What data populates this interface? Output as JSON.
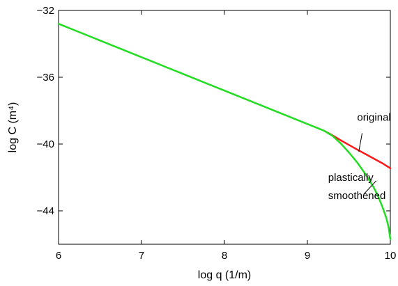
{
  "chart_data": {
    "type": "line",
    "title": "",
    "xlabel": "log q (1/m)",
    "ylabel": "log C (m⁴)",
    "xlim": [
      6,
      10
    ],
    "ylim": [
      -46,
      -32
    ],
    "xticks": [
      6,
      7,
      8,
      9,
      10
    ],
    "yticks": [
      -44,
      -40,
      -36,
      -32
    ],
    "xtick_labels": [
      "6",
      "7",
      "8",
      "9",
      "10"
    ],
    "ytick_labels": [
      "−44",
      "−40",
      "−36",
      "−32"
    ],
    "grid": false,
    "series": [
      {
        "color": "#ff1a1a",
        "x": [
          9.2,
          9.3,
          9.4,
          9.5,
          9.6,
          9.7,
          9.8,
          9.9,
          10.0
        ],
        "y": [
          -39.2,
          -39.47,
          -39.77,
          -40.05,
          -40.33,
          -40.6,
          -40.87,
          -41.14,
          -41.45
        ]
      },
      {
        "color": "#22dd22",
        "x": [
          6.0,
          6.5,
          7.0,
          7.5,
          8.0,
          8.5,
          9.0,
          9.2,
          9.3,
          9.4,
          9.5,
          9.6,
          9.7,
          9.8,
          9.85,
          9.9,
          9.95,
          9.98,
          10.0
        ],
        "y": [
          -32.8,
          -33.8,
          -34.8,
          -35.8,
          -36.8,
          -37.8,
          -38.8,
          -39.2,
          -39.5,
          -39.95,
          -40.5,
          -41.1,
          -41.8,
          -42.6,
          -43.1,
          -43.7,
          -44.4,
          -45.0,
          -45.7
        ]
      }
    ],
    "annotations": [
      {
        "text": "original",
        "x": 9.6,
        "y": -38.6,
        "pointer": [
          9.66,
          -39.35,
          9.62,
          -40.45
        ]
      },
      {
        "text": "plastically",
        "x": 9.25,
        "y": -42.2,
        "pointer": [
          9.68,
          -43.0,
          9.83,
          -42.2
        ]
      },
      {
        "text": "smoothened",
        "x": 9.25,
        "y": -43.3
      }
    ]
  }
}
